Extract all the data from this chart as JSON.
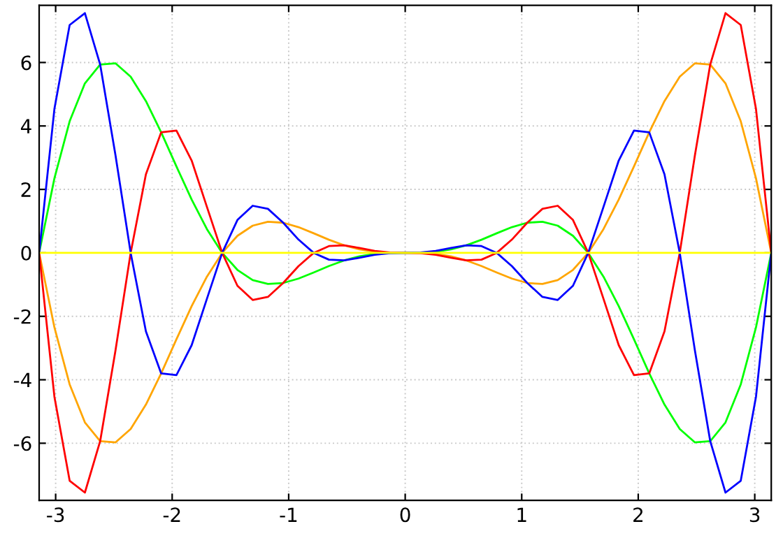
{
  "chart_data": {
    "type": "line",
    "x": [
      -3.1416,
      -3.0107,
      -2.8798,
      -2.7489,
      -2.618,
      -2.4871,
      -2.3562,
      -2.2253,
      -2.0944,
      -1.9635,
      -1.8326,
      -1.7017,
      -1.5708,
      -1.4399,
      -1.309,
      -1.1781,
      -1.0472,
      -0.9163,
      -0.7854,
      -0.6545,
      -0.5236,
      -0.3927,
      -0.2618,
      -0.1309,
      0,
      0.1309,
      0.2618,
      0.3927,
      0.5236,
      0.6545,
      0.7854,
      0.9163,
      1.0472,
      1.1781,
      1.309,
      1.4399,
      1.5708,
      1.7017,
      1.8326,
      1.9635,
      2.0944,
      2.2253,
      2.3562,
      2.4871,
      2.618,
      2.7489,
      2.8798,
      3.0107,
      3.1416
    ],
    "series": [
      {
        "color": "#ffa500",
        "values": [
          0,
          -2.346,
          -4.147,
          -5.343,
          -5.936,
          -5.975,
          -5.552,
          -4.783,
          -3.799,
          -2.726,
          -1.679,
          -0.749,
          0,
          0.537,
          0.857,
          0.981,
          0.95,
          0.811,
          0.617,
          0.414,
          0.238,
          0.109,
          0.034,
          0.004,
          0,
          -0.004,
          -0.034,
          -0.109,
          -0.238,
          -0.414,
          -0.617,
          -0.811,
          -0.95,
          -0.981,
          -0.857,
          -0.537,
          0,
          0.749,
          1.679,
          2.726,
          3.799,
          4.783,
          5.552,
          5.975,
          5.936,
          5.343,
          4.147,
          2.346,
          0
        ]
      },
      {
        "color": "#00ff00",
        "values": [
          0,
          2.346,
          4.147,
          5.343,
          5.936,
          5.975,
          5.552,
          4.783,
          3.799,
          2.726,
          1.679,
          0.749,
          0,
          -0.537,
          -0.857,
          -0.981,
          -0.95,
          -0.811,
          -0.617,
          -0.414,
          -0.238,
          -0.109,
          -0.034,
          -0.004,
          0,
          0.004,
          0.034,
          0.109,
          0.238,
          0.414,
          0.617,
          0.811,
          0.95,
          0.981,
          0.857,
          0.537,
          0,
          -0.749,
          -1.679,
          -2.726,
          -3.799,
          -4.783,
          -5.552,
          -5.975,
          -5.936,
          -5.343,
          -4.147,
          -2.346,
          0
        ]
      },
      {
        "color": "#ff0000",
        "values": [
          0,
          -4.532,
          -7.182,
          -7.556,
          -5.936,
          -3.093,
          0,
          2.476,
          3.799,
          3.855,
          2.909,
          1.448,
          0,
          -1.037,
          -1.484,
          -1.388,
          -0.95,
          -0.42,
          0,
          0.214,
          0.238,
          0.154,
          0.059,
          0.009,
          0,
          -0.009,
          -0.059,
          -0.154,
          -0.238,
          -0.214,
          0,
          0.42,
          0.95,
          1.388,
          1.484,
          1.037,
          0,
          -1.448,
          -2.909,
          -3.855,
          -3.799,
          -2.476,
          0,
          3.093,
          5.936,
          7.556,
          7.182,
          4.532,
          0
        ]
      },
      {
        "color": "#0000ff",
        "values": [
          0,
          4.532,
          7.182,
          7.556,
          5.936,
          3.093,
          0,
          -2.476,
          -3.799,
          -3.855,
          -2.909,
          -1.448,
          0,
          1.037,
          1.484,
          1.388,
          0.95,
          0.42,
          0,
          -0.214,
          -0.238,
          -0.154,
          -0.059,
          -0.009,
          0,
          0.009,
          0.059,
          0.154,
          0.238,
          0.214,
          0,
          -0.42,
          -0.95,
          -1.388,
          -1.484,
          -1.037,
          0,
          1.448,
          2.909,
          3.855,
          3.799,
          2.476,
          0,
          -3.093,
          -5.936,
          -7.556,
          -7.182,
          -4.532,
          0
        ]
      },
      {
        "color": "#ffff00",
        "values": [
          0,
          0,
          0,
          0,
          0,
          0,
          0,
          0,
          0,
          0,
          0,
          0,
          0,
          0,
          0,
          0,
          0,
          0,
          0,
          0,
          0,
          0,
          0,
          0,
          0,
          0,
          0,
          0,
          0,
          0,
          0,
          0,
          0,
          0,
          0,
          0,
          0,
          0,
          0,
          0,
          0,
          0,
          0,
          0,
          0,
          0,
          0,
          0,
          0
        ]
      }
    ],
    "xlim": [
      -3.1416,
      3.1416
    ],
    "xticks": [
      -3,
      -2,
      -1,
      0,
      1,
      2,
      3
    ],
    "ylim": [
      -7.8,
      7.8
    ],
    "yticks": [
      -6,
      -4,
      -2,
      0,
      2,
      4,
      6
    ],
    "grid": true,
    "legend": false,
    "marker": "none",
    "line_style": "solid"
  }
}
